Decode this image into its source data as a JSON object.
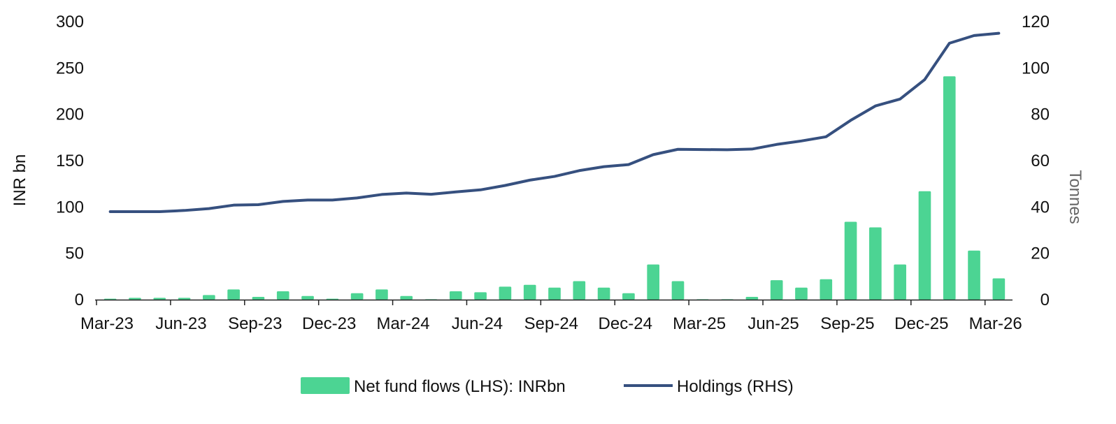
{
  "chart_data": {
    "type": "bar+line",
    "colors": {
      "bars": "#4cd493",
      "line": "#36507f",
      "axis": "#222222"
    },
    "left_axis": {
      "label": "INR bn",
      "ylim": [
        0,
        300
      ],
      "ticks": [
        0,
        50,
        100,
        150,
        200,
        250,
        300
      ]
    },
    "right_axis": {
      "label": "Tonnes",
      "ylim": [
        0,
        120
      ],
      "ticks": [
        0,
        20,
        40,
        60,
        80,
        100,
        120
      ]
    },
    "x_tick_labels": [
      "Mar-23",
      "Jun-23",
      "Sep-23",
      "Dec-23",
      "Mar-24",
      "Jun-24",
      "Sep-24",
      "Dec-24",
      "Mar-25",
      "Jun-25",
      "Sep-25",
      "Dec-25",
      "Mar-26"
    ],
    "months": [
      "Mar-23",
      "Apr-23",
      "May-23",
      "Jun-23",
      "Jul-23",
      "Aug-23",
      "Sep-23",
      "Oct-23",
      "Nov-23",
      "Dec-23",
      "Jan-24",
      "Feb-24",
      "Mar-24",
      "Apr-24",
      "May-24",
      "Jun-24",
      "Jul-24",
      "Aug-24",
      "Sep-24",
      "Oct-24",
      "Nov-24",
      "Dec-24",
      "Jan-25",
      "Feb-25",
      "Mar-25",
      "Apr-25",
      "May-25",
      "Jun-25",
      "Jul-25",
      "Aug-25",
      "Sep-25",
      "Oct-25",
      "Nov-25",
      "Dec-25",
      "Jan-26",
      "Feb-26",
      "Mar-26"
    ],
    "series": [
      {
        "name": "Net fund flows (LHS): INRbn",
        "type": "bar",
        "axis": "left",
        "values": [
          1,
          2,
          2,
          2,
          5,
          11,
          3,
          9,
          4,
          1,
          7,
          11,
          4,
          0.5,
          9,
          8,
          14,
          16,
          13,
          20,
          13,
          7,
          38,
          20,
          0.5,
          0.5,
          3,
          21,
          13,
          22,
          84,
          78,
          38,
          117,
          241,
          53,
          23
        ]
      },
      {
        "name": "Holdings (RHS)",
        "type": "line",
        "axis": "right",
        "values": [
          38,
          38,
          38,
          38.5,
          39.3,
          40.8,
          41,
          42.4,
          43,
          43,
          43.9,
          45.4,
          46,
          45.5,
          46.5,
          47.4,
          49.3,
          51.6,
          53.2,
          55.7,
          57.4,
          58.3,
          62.6,
          64.9,
          64.8,
          64.7,
          65,
          67,
          68.5,
          70.3,
          77.4,
          83.6,
          86.6,
          95,
          110.7,
          114,
          115
        ]
      }
    ],
    "legend": [
      {
        "name": "Net fund flows (LHS): INRbn",
        "symbol": "bar"
      },
      {
        "name": "Holdings (RHS)",
        "symbol": "line"
      }
    ],
    "legend_position": "bottom-center"
  }
}
